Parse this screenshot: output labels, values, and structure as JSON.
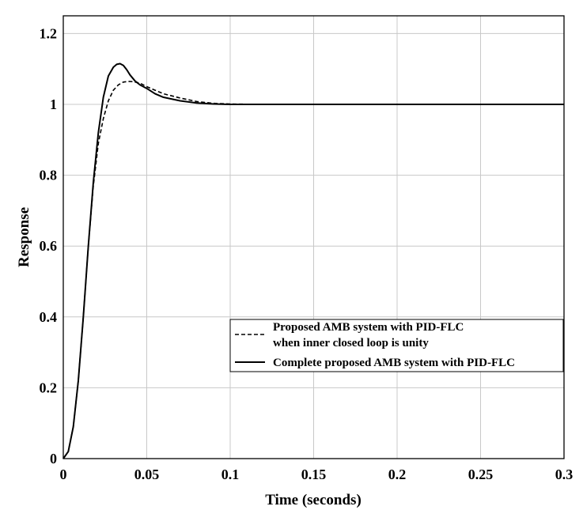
{
  "chart_data": {
    "type": "line",
    "title": "",
    "xlabel": "Time (seconds)",
    "ylabel": "Response",
    "xlim": [
      0,
      0.3
    ],
    "ylim": [
      0,
      1.25
    ],
    "xticks": [
      0,
      0.05,
      0.1,
      0.15,
      0.2,
      0.25,
      0.3
    ],
    "xtick_labels": [
      "0",
      "0.05",
      "0.1",
      "0.15",
      "0.2",
      "0.25",
      "0.3"
    ],
    "yticks": [
      0,
      0.2,
      0.4,
      0.6,
      0.8,
      1,
      1.2
    ],
    "ytick_labels": [
      "0",
      "0.2",
      "0.4",
      "0.6",
      "0.8",
      "1",
      "1.2"
    ],
    "grid": true,
    "legend_position": "bottom-right",
    "series": [
      {
        "name": "Proposed AMB system with PID-FLC when inner closed loop is unity",
        "legend_lines": [
          "Proposed AMB system with PID-FLC",
          "when inner closed loop is unity"
        ],
        "style": "dashed",
        "color": "#000000",
        "x": [
          0,
          0.003,
          0.006,
          0.009,
          0.012,
          0.015,
          0.018,
          0.021,
          0.024,
          0.027,
          0.03,
          0.033,
          0.036,
          0.039,
          0.042,
          0.046,
          0.05,
          0.055,
          0.06,
          0.07,
          0.08,
          0.09,
          0.1,
          0.12,
          0.15,
          0.2,
          0.25,
          0.3
        ],
        "y": [
          0,
          0.02,
          0.09,
          0.22,
          0.4,
          0.6,
          0.77,
          0.89,
          0.96,
          1.01,
          1.04,
          1.055,
          1.063,
          1.065,
          1.064,
          1.06,
          1.05,
          1.04,
          1.03,
          1.018,
          1.008,
          1.003,
          1.001,
          1.0,
          1.0,
          1.0,
          1.0,
          1.0
        ]
      },
      {
        "name": "Complete proposed AMB system with PID-FLC",
        "legend_lines": [
          "Complete proposed AMB system with PID-FLC"
        ],
        "style": "solid",
        "color": "#000000",
        "x": [
          0,
          0.003,
          0.006,
          0.009,
          0.012,
          0.015,
          0.018,
          0.021,
          0.024,
          0.027,
          0.03,
          0.032,
          0.034,
          0.036,
          0.038,
          0.04,
          0.043,
          0.046,
          0.05,
          0.055,
          0.06,
          0.07,
          0.08,
          0.09,
          0.1,
          0.12,
          0.15,
          0.2,
          0.25,
          0.3
        ],
        "y": [
          0,
          0.02,
          0.09,
          0.22,
          0.4,
          0.6,
          0.78,
          0.92,
          1.02,
          1.08,
          1.105,
          1.113,
          1.115,
          1.11,
          1.098,
          1.083,
          1.066,
          1.055,
          1.045,
          1.03,
          1.02,
          1.01,
          1.004,
          1.001,
          1.0,
          1.0,
          1.0,
          1.0,
          1.0,
          1.0
        ]
      }
    ]
  }
}
